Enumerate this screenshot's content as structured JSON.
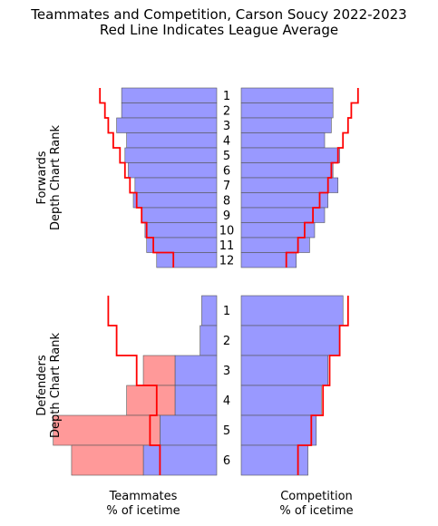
{
  "chart_data": {
    "type": "bar",
    "title": "Teammates and Competition, Carson Soucy 2022-2023",
    "subtitle": "Red Line Indicates League Average",
    "xlabel_left": [
      "Teammates",
      "% of icetime"
    ],
    "xlabel_right": [
      "Competition",
      "% of icetime"
    ],
    "colors": {
      "bar": "#9999ff",
      "bar_highlight": "#ff9999",
      "bar_edge": "#555555",
      "league_line": "#ff0000"
    },
    "panels": [
      {
        "name": "Forwards",
        "ylabel": [
          "Forwards",
          "Depth Chart Rank"
        ],
        "ranks": [
          "1",
          "2",
          "3",
          "4",
          "5",
          "6",
          "7",
          "8",
          "9",
          "10",
          "11",
          "12"
        ],
        "xlim": [
          0,
          1
        ],
        "teammates": {
          "main": [
            0.57,
            0.57,
            0.6,
            0.54,
            0.55,
            0.53,
            0.49,
            0.5,
            0.45,
            0.43,
            0.42,
            0.36
          ],
          "highlight": [
            0,
            0,
            0,
            0,
            0,
            0,
            0,
            0,
            0,
            0,
            0,
            0
          ],
          "league_avg": [
            0.7,
            0.67,
            0.65,
            0.62,
            0.58,
            0.55,
            0.52,
            0.48,
            0.45,
            0.42,
            0.38,
            0.26
          ]
        },
        "competition": {
          "main": [
            0.55,
            0.55,
            0.54,
            0.5,
            0.59,
            0.55,
            0.58,
            0.52,
            0.5,
            0.44,
            0.41,
            0.33
          ],
          "highlight": [
            0,
            0,
            0,
            0,
            0,
            0,
            0,
            0,
            0,
            0,
            0,
            0
          ],
          "league_avg": [
            0.7,
            0.66,
            0.64,
            0.61,
            0.58,
            0.54,
            0.52,
            0.47,
            0.43,
            0.38,
            0.34,
            0.27
          ]
        }
      },
      {
        "name": "Defenders",
        "ylabel": [
          "Defenders",
          "Depth Chart Rank"
        ],
        "ranks": [
          "1",
          "2",
          "3",
          "4",
          "5",
          "6"
        ],
        "xlim": [
          0,
          1
        ],
        "teammates": {
          "main": [
            0.09,
            0.1,
            0.25,
            0.25,
            0.34,
            0.44
          ],
          "highlight": [
            0,
            0,
            0.19,
            0.29,
            0.64,
            0.43
          ],
          "league_avg": [
            0.65,
            0.6,
            0.48,
            0.36,
            0.4,
            0.34
          ]
        },
        "competition": {
          "main": [
            0.61,
            0.59,
            0.52,
            0.48,
            0.45,
            0.4
          ],
          "highlight": [
            0,
            0,
            0,
            0,
            0,
            0
          ],
          "league_avg": [
            0.64,
            0.59,
            0.53,
            0.49,
            0.42,
            0.34
          ]
        }
      }
    ]
  }
}
